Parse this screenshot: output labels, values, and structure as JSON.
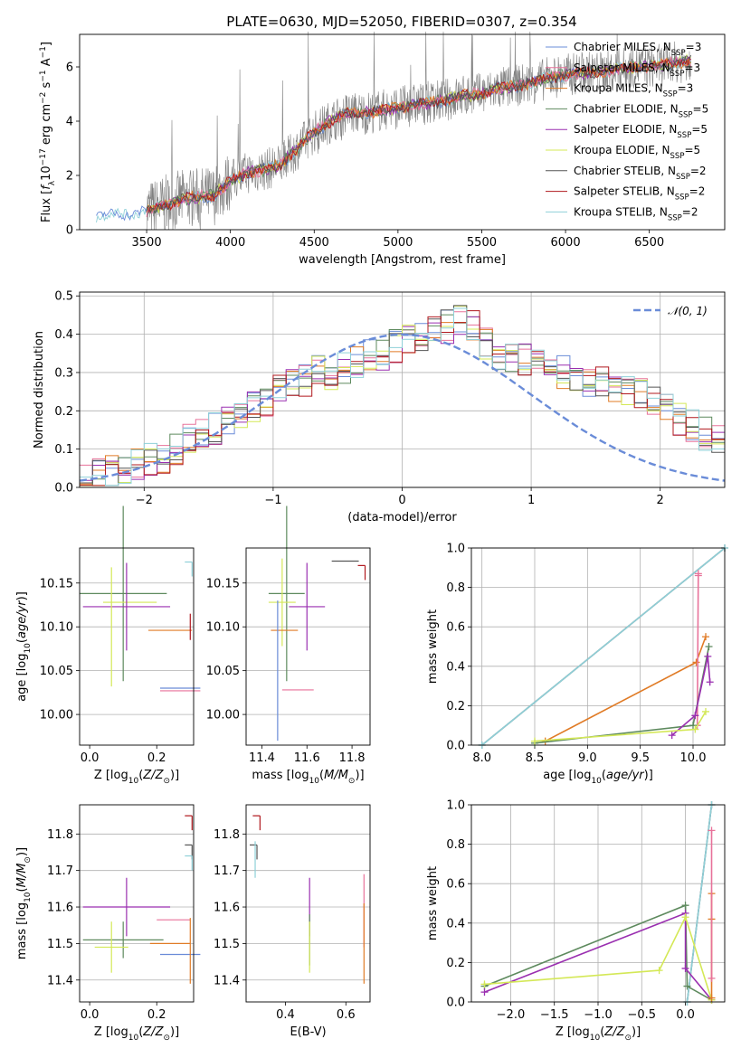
{
  "title": "PLATE=0630, MJD=52050, FIBERID=0307, z=0.354",
  "colors": {
    "chabrier_miles": "#6a8cd8",
    "salpeter_miles": "#e8729a",
    "kroupa_miles": "#e07b26",
    "chabrier_elodie": "#5e8a5e",
    "salpeter_elodie": "#9a2fb0",
    "kroupa_elodie": "#d4e857",
    "chabrier_stelib": "#555555",
    "salpeter_stelib": "#b0181e",
    "kroupa_stelib": "#8fd0d8",
    "data": "#808080",
    "normal": "#6a8cd8"
  },
  "legend_labels": [
    {
      "main": "Chabrier MILES, N",
      "sub": "SSP",
      "tail": "=3",
      "color_key": "chabrier_miles"
    },
    {
      "main": "Salpeter MILES, N",
      "sub": "SSP",
      "tail": "=3",
      "color_key": "salpeter_miles"
    },
    {
      "main": "Kroupa MILES, N",
      "sub": "SSP",
      "tail": "=3",
      "color_key": "kroupa_miles"
    },
    {
      "main": "Chabrier ELODIE, N",
      "sub": "SSP",
      "tail": "=5",
      "color_key": "chabrier_elodie"
    },
    {
      "main": "Salpeter ELODIE, N",
      "sub": "SSP",
      "tail": "=5",
      "color_key": "salpeter_elodie"
    },
    {
      "main": "Kroupa ELODIE, N",
      "sub": "SSP",
      "tail": "=5",
      "color_key": "kroupa_elodie"
    },
    {
      "main": "Chabrier STELIB, N",
      "sub": "SSP",
      "tail": "=2",
      "color_key": "chabrier_stelib"
    },
    {
      "main": "Salpeter STELIB, N",
      "sub": "SSP",
      "tail": "=2",
      "color_key": "salpeter_stelib"
    },
    {
      "main": "Kroupa STELIB, N",
      "sub": "SSP",
      "tail": "=2",
      "color_key": "kroupa_stelib"
    }
  ],
  "hist_legend": "𝒩(0, 1)",
  "chart_data": [
    {
      "type": "line",
      "id": "spectrum",
      "xlabel": "wavelength [Angstrom, rest frame]",
      "ylabel": "Flux [f_λ10^-17 erg cm^-2 s^-1 A^-1]",
      "xlim": [
        3100,
        6950
      ],
      "ylim": [
        0,
        7.2
      ],
      "xticks": [
        "3500",
        "4000",
        "4500",
        "5000",
        "5500",
        "6000",
        "6500"
      ],
      "yticks": [
        "0",
        "2",
        "4",
        "6"
      ],
      "model_continuum": {
        "x": [
          3200,
          3300,
          3400,
          3500,
          3600,
          3700,
          3800,
          3900,
          4000,
          4100,
          4200,
          4300,
          4400,
          4500,
          4600,
          4700,
          4800,
          4900,
          5000,
          5100,
          5200,
          5300,
          5400,
          5500,
          5600,
          5700,
          5800,
          5900,
          6000,
          6100,
          6200,
          6300,
          6400,
          6500,
          6600,
          6700,
          6750
        ],
        "y": [
          0.5,
          0.55,
          0.6,
          0.7,
          0.9,
          1.1,
          1.2,
          1.25,
          1.8,
          2.1,
          2.2,
          2.4,
          3.0,
          3.6,
          4.0,
          4.3,
          4.3,
          4.4,
          4.5,
          4.6,
          4.7,
          4.8,
          4.95,
          5.0,
          5.2,
          5.3,
          5.4,
          5.6,
          5.7,
          5.8,
          5.8,
          5.9,
          6.0,
          6.0,
          6.1,
          6.2,
          6.2
        ]
      }
    },
    {
      "type": "bar",
      "id": "residual_hist",
      "xlabel": "(data-model)/error",
      "ylabel": "Normed distribution",
      "xlim": [
        -2.5,
        2.5
      ],
      "ylim": [
        0,
        0.51
      ],
      "xticks": [
        "−2",
        "−1",
        "0",
        "1",
        "2"
      ],
      "yticks": [
        "0.0",
        "0.1",
        "0.2",
        "0.3",
        "0.4",
        "0.5"
      ],
      "grid": true,
      "legend": "top-right",
      "approx_bin_width": 0.1,
      "envelope": [
        0.02,
        0.03,
        0.04,
        0.05,
        0.06,
        0.07,
        0.08,
        0.1,
        0.12,
        0.14,
        0.15,
        0.17,
        0.2,
        0.21,
        0.23,
        0.25,
        0.27,
        0.28,
        0.3,
        0.3,
        0.31,
        0.33,
        0.35,
        0.35,
        0.37,
        0.39,
        0.4,
        0.41,
        0.42,
        0.43,
        0.42,
        0.38,
        0.35,
        0.34,
        0.33,
        0.32,
        0.31,
        0.3,
        0.29,
        0.28,
        0.27,
        0.26,
        0.25,
        0.24,
        0.22,
        0.2,
        0.18,
        0.16,
        0.14,
        0.12
      ]
    },
    {
      "type": "scatter",
      "id": "age_vs_Z",
      "xlabel": "Z [log10(Z/Z☉)]",
      "ylabel": "age  [log10(age/yr)]",
      "xlim": [
        -0.03,
        0.31
      ],
      "ylim": [
        9.965,
        10.19
      ],
      "xticks": [
        "0.0",
        "0.2"
      ],
      "yticks": [
        "10.00",
        "10.05",
        "10.10",
        "10.15"
      ],
      "points": [
        {
          "lib": "chabrier_elodie",
          "x": 0.1,
          "xerr": 0.13,
          "y": 10.138,
          "yerr": 0.1
        },
        {
          "lib": "kroupa_elodie",
          "x": 0.12,
          "xerr": 0.08,
          "y": 10.128,
          "yerr": 0.0
        },
        {
          "lib": "salpeter_elodie",
          "x": 0.11,
          "xerr": 0.13,
          "y": 10.123,
          "yerr": 0.05
        },
        {
          "lib": "kroupa_elodie",
          "x": 0.065,
          "xerr": 0.0,
          "y": 10.1,
          "yerr": 0.068
        },
        {
          "lib": "kroupa_miles",
          "x": 0.24,
          "xerr": 0.065,
          "y": 10.096,
          "yerr": 0.0
        },
        {
          "lib": "chabrier_miles",
          "x": 0.27,
          "xerr": 0.06,
          "y": 10.03,
          "yerr": 0.0
        },
        {
          "lib": "salpeter_miles",
          "x": 0.27,
          "xerr": 0.06,
          "y": 10.027,
          "yerr": 0.0
        },
        {
          "lib": "kroupa_stelib",
          "x": 0.3,
          "xerr": 0.0,
          "y": 10.174,
          "yerr": 0.0
        },
        {
          "lib": "salpeter_stelib",
          "x": 0.3,
          "xerr": 0.0,
          "y": 10.1,
          "yerr": 0.015
        }
      ]
    },
    {
      "type": "scatter",
      "id": "age_vs_mass",
      "xlabel": "mass [log10(M/M☉)]",
      "xlim": [
        11.33,
        11.88
      ],
      "ylim": [
        9.965,
        10.19
      ],
      "xticks": [
        "11.4",
        "11.6",
        "11.8"
      ],
      "yticks": [
        "10.00",
        "10.05",
        "10.10",
        "10.15"
      ],
      "points": [
        {
          "lib": "chabrier_elodie",
          "x": 11.51,
          "xerr": 0.08,
          "y": 10.138,
          "yerr": 0.1
        },
        {
          "lib": "kroupa_elodie",
          "x": 11.49,
          "xerr": 0.06,
          "y": 10.128,
          "yerr": 0.05
        },
        {
          "lib": "salpeter_elodie",
          "x": 11.6,
          "xerr": 0.08,
          "y": 10.123,
          "yerr": 0.05
        },
        {
          "lib": "kroupa_miles",
          "x": 11.5,
          "xerr": 0.06,
          "y": 10.096,
          "yerr": 0.0
        },
        {
          "lib": "chabrier_miles",
          "x": 11.47,
          "xerr": 0.0,
          "y": 10.05,
          "yerr": 0.08
        },
        {
          "lib": "salpeter_miles",
          "x": 11.56,
          "xerr": 0.07,
          "y": 10.028,
          "yerr": 0.0
        },
        {
          "lib": "chabrier_stelib",
          "x": 11.77,
          "xerr": 0.06,
          "y": 10.175,
          "yerr": 0.0
        },
        {
          "lib": "salpeter_stelib",
          "x": 11.85,
          "xerr": 0.0,
          "y": 10.17,
          "yerr": 0.0
        }
      ]
    },
    {
      "type": "line",
      "id": "weight_vs_age",
      "xlabel": "age  [log10(age/yr)]",
      "ylabel": "mass weight",
      "xlim": [
        7.9,
        10.3
      ],
      "ylim": [
        0,
        1.0
      ],
      "xticks": [
        "8.0",
        "8.5",
        "9.0",
        "9.5",
        "10.0"
      ],
      "yticks": [
        "0.0",
        "0.2",
        "0.4",
        "0.6",
        "0.8",
        "1.0"
      ],
      "grid": true,
      "series": [
        {
          "lib": "chabrier_stelib",
          "x": [
            8.0,
            10.3
          ],
          "y": [
            0.0,
            1.0
          ]
        },
        {
          "lib": "kroupa_stelib",
          "x": [
            8.0,
            10.3
          ],
          "y": [
            0.0,
            1.0
          ]
        },
        {
          "lib": "kroupa_miles",
          "x": [
            8.6,
            10.03,
            10.12
          ],
          "y": [
            0.02,
            0.42,
            0.55
          ]
        },
        {
          "lib": "salpeter_miles",
          "x": [
            10.04,
            10.05,
            10.05
          ],
          "y": [
            0.1,
            0.87,
            0.86
          ]
        },
        {
          "lib": "chabrier_elodie",
          "x": [
            8.5,
            10.0,
            10.15
          ],
          "y": [
            0.01,
            0.1,
            0.5
          ]
        },
        {
          "lib": "salpeter_elodie",
          "x": [
            9.8,
            10.02,
            10.14,
            10.16
          ],
          "y": [
            0.05,
            0.15,
            0.45,
            0.32
          ]
        },
        {
          "lib": "kroupa_elodie",
          "x": [
            8.5,
            10.02,
            10.12
          ],
          "y": [
            0.02,
            0.08,
            0.17
          ]
        }
      ]
    },
    {
      "type": "scatter",
      "id": "mass_vs_Z",
      "xlabel": "Z [log10(Z/Z☉)]",
      "ylabel": "mass [log10(M/M☉)]",
      "xlim": [
        -0.03,
        0.31
      ],
      "ylim": [
        11.34,
        11.88
      ],
      "xticks": [
        "0.0",
        "0.2"
      ],
      "yticks": [
        "11.4",
        "11.5",
        "11.6",
        "11.7",
        "11.8"
      ],
      "points": [
        {
          "lib": "salpeter_elodie",
          "x": 0.11,
          "xerr": 0.13,
          "y": 11.6,
          "yerr": 0.08
        },
        {
          "lib": "chabrier_elodie",
          "x": 0.1,
          "xerr": 0.12,
          "y": 11.51,
          "yerr": 0.05
        },
        {
          "lib": "kroupa_elodie",
          "x": 0.065,
          "xerr": 0.05,
          "y": 11.49,
          "yerr": 0.07
        },
        {
          "lib": "kroupa_miles",
          "x": 0.24,
          "xerr": 0.06,
          "y": 11.5,
          "yerr": 0.0
        },
        {
          "lib": "salpeter_miles",
          "x": 0.25,
          "xerr": 0.05,
          "y": 11.565,
          "yerr": 0.0
        },
        {
          "lib": "chabrier_miles",
          "x": 0.27,
          "xerr": 0.06,
          "y": 11.47,
          "yerr": 0.0
        },
        {
          "lib": "salpeter_stelib",
          "x": 0.3,
          "xerr": 0.0,
          "y": 11.85,
          "yerr": 0.0
        },
        {
          "lib": "chabrier_stelib",
          "x": 0.3,
          "xerr": 0.0,
          "y": 11.77,
          "yerr": 0.0
        },
        {
          "lib": "kroupa_stelib",
          "x": 0.3,
          "xerr": 0.0,
          "y": 11.74,
          "yerr": 0.0
        },
        {
          "lib": "kroupa_miles",
          "x": 0.3,
          "xerr": 0.0,
          "y": 11.48,
          "yerr": 0.09
        }
      ]
    },
    {
      "type": "scatter",
      "id": "mass_vs_ebv",
      "xlabel": "E(B-V)",
      "xlim": [
        0.27,
        0.68
      ],
      "ylim": [
        11.34,
        11.88
      ],
      "xticks": [
        "0.4",
        "0.6"
      ],
      "yticks": [
        "11.4",
        "11.5",
        "11.6",
        "11.7",
        "11.8"
      ],
      "points": [
        {
          "lib": "salpeter_stelib",
          "x": 0.31,
          "xerr": 0.0,
          "y": 11.85,
          "yerr": 0.0
        },
        {
          "lib": "chabrier_stelib",
          "x": 0.3,
          "xerr": 0.0,
          "y": 11.77,
          "yerr": 0.0
        },
        {
          "lib": "kroupa_stelib",
          "x": 0.3,
          "xerr": 0.0,
          "y": 11.73,
          "yerr": 0.05
        },
        {
          "lib": "salpeter_elodie",
          "x": 0.48,
          "xerr": 0.0,
          "y": 11.6,
          "yerr": 0.08
        },
        {
          "lib": "chabrier_elodie",
          "x": 0.48,
          "xerr": 0.0,
          "y": 11.51,
          "yerr": 0.07
        },
        {
          "lib": "kroupa_elodie",
          "x": 0.48,
          "xerr": 0.0,
          "y": 11.49,
          "yerr": 0.07
        },
        {
          "lib": "salpeter_miles",
          "x": 0.66,
          "xerr": 0.0,
          "y": 11.59,
          "yerr": 0.1
        },
        {
          "lib": "kroupa_miles",
          "x": 0.66,
          "xerr": 0.0,
          "y": 11.5,
          "yerr": 0.11
        }
      ]
    },
    {
      "type": "line",
      "id": "weight_vs_Z",
      "xlabel": "Z [log10(Z/Z☉)]",
      "ylabel": "mass weight",
      "xlim": [
        -2.45,
        0.45
      ],
      "ylim": [
        0,
        1.0
      ],
      "xticks": [
        "−2.0",
        "−1.5",
        "−1.0",
        "−0.5",
        "0.0"
      ],
      "yticks": [
        "0.0",
        "0.2",
        "0.4",
        "0.6",
        "0.8",
        "1.0"
      ],
      "grid": true,
      "series": [
        {
          "lib": "chabrier_stelib",
          "x": [
            0.02,
            0.3
          ],
          "y": [
            0.0,
            1.0
          ]
        },
        {
          "lib": "kroupa_stelib",
          "x": [
            0.02,
            0.3
          ],
          "y": [
            0.0,
            1.0
          ]
        },
        {
          "lib": "chabrier_elodie",
          "x": [
            -2.3,
            0.0,
            0.02,
            0.3
          ],
          "y": [
            0.08,
            0.49,
            0.08,
            0.01
          ]
        },
        {
          "lib": "salpeter_elodie",
          "x": [
            -2.3,
            0.0,
            0.0,
            0.3
          ],
          "y": [
            0.05,
            0.45,
            0.17,
            0.01
          ]
        },
        {
          "lib": "kroupa_elodie",
          "x": [
            -2.3,
            -0.3,
            0.0,
            0.3
          ],
          "y": [
            0.09,
            0.16,
            0.43,
            0.01
          ]
        },
        {
          "lib": "kroupa_miles",
          "x": [
            0.3,
            0.3,
            0.3
          ],
          "y": [
            0.02,
            0.55,
            0.42
          ]
        },
        {
          "lib": "salpeter_miles",
          "x": [
            0.3,
            0.3
          ],
          "y": [
            0.12,
            0.87
          ]
        }
      ]
    }
  ]
}
